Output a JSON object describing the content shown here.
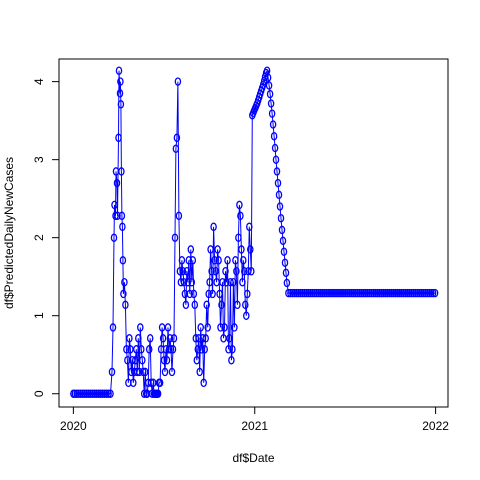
{
  "chart_data": {
    "type": "scatter",
    "style": "b",
    "xlabel": "df$Date",
    "ylabel": "df$PredictedDailyNewCases",
    "x_axis_kind": "date",
    "xlim": [
      "2019-12-03",
      "2022-01-26"
    ],
    "ylim": [
      -0.17,
      4.29
    ],
    "x_ticks": [
      {
        "label": "2020",
        "value": "2020-01-01"
      },
      {
        "label": "2021",
        "value": "2021-01-01"
      },
      {
        "label": "2022",
        "value": "2022-01-01"
      }
    ],
    "y_ticks": [
      0,
      1,
      2,
      3,
      4
    ],
    "grid": false,
    "legend": "none",
    "colors": {
      "series": "#0000ff",
      "axes": "#000000"
    },
    "series": [
      {
        "x": [
          "2020-01-01",
          "2020-01-04",
          "2020-01-08",
          "2020-01-12",
          "2020-01-16",
          "2020-01-20",
          "2020-01-24",
          "2020-01-28",
          "2020-02-01",
          "2020-02-05",
          "2020-02-09",
          "2020-02-13",
          "2020-02-17",
          "2020-02-21",
          "2020-02-25",
          "2020-02-29",
          "2020-03-04",
          "2020-03-08",
          "2020-03-12",
          "2020-03-16",
          "2020-03-19",
          "2020-03-21",
          "2020-03-23",
          "2020-03-24",
          "2020-03-26",
          "2020-03-27",
          "2020-03-29",
          "2020-03-30",
          "2020-04-01",
          "2020-04-02",
          "2020-04-04",
          "2020-04-05",
          "2020-04-06",
          "2020-04-07",
          "2020-04-08",
          "2020-04-09",
          "2020-04-10",
          "2020-04-11",
          "2020-04-13",
          "2020-04-15",
          "2020-04-17",
          "2020-04-19",
          "2020-04-21",
          "2020-04-23",
          "2020-04-25",
          "2020-04-27",
          "2020-04-29",
          "2020-05-01",
          "2020-05-03",
          "2020-05-05",
          "2020-05-07",
          "2020-05-09",
          "2020-05-11",
          "2020-05-13",
          "2020-05-15",
          "2020-05-17",
          "2020-05-19",
          "2020-05-21",
          "2020-05-23",
          "2020-05-25",
          "2020-05-27",
          "2020-05-29",
          "2020-05-31",
          "2020-06-02",
          "2020-06-04",
          "2020-06-06",
          "2020-06-08",
          "2020-06-10",
          "2020-06-12",
          "2020-06-14",
          "2020-06-16",
          "2020-06-18",
          "2020-06-20",
          "2020-06-22",
          "2020-06-24",
          "2020-06-26",
          "2020-06-28",
          "2020-06-30",
          "2020-07-02",
          "2020-07-04",
          "2020-07-06",
          "2020-07-08",
          "2020-07-10",
          "2020-07-12",
          "2020-07-14",
          "2020-07-16",
          "2020-07-18",
          "2020-07-20",
          "2020-07-22",
          "2020-07-24",
          "2020-07-26",
          "2020-07-28",
          "2020-07-30",
          "2020-08-01",
          "2020-08-03",
          "2020-08-05",
          "2020-08-07",
          "2020-08-09",
          "2020-08-11",
          "2020-08-13",
          "2020-08-15",
          "2020-08-17",
          "2020-08-19",
          "2020-08-21",
          "2020-08-23",
          "2020-08-25",
          "2020-08-27",
          "2020-08-29",
          "2020-08-31",
          "2020-09-02",
          "2020-09-04",
          "2020-09-06",
          "2020-09-08",
          "2020-09-10",
          "2020-09-12",
          "2020-09-14",
          "2020-09-16",
          "2020-09-18",
          "2020-09-20",
          "2020-09-22",
          "2020-09-24",
          "2020-09-26",
          "2020-09-28",
          "2020-09-30",
          "2020-10-02",
          "2020-10-04",
          "2020-10-06",
          "2020-10-08",
          "2020-10-10",
          "2020-10-12",
          "2020-10-14",
          "2020-10-16",
          "2020-10-18",
          "2020-10-20",
          "2020-10-22",
          "2020-10-24",
          "2020-10-26",
          "2020-10-28",
          "2020-10-30",
          "2020-11-01",
          "2020-11-03",
          "2020-11-05",
          "2020-11-07",
          "2020-11-09",
          "2020-11-11",
          "2020-11-13",
          "2020-11-15",
          "2020-11-17",
          "2020-11-19",
          "2020-11-21",
          "2020-11-23",
          "2020-11-25",
          "2020-11-27",
          "2020-11-29",
          "2020-12-01",
          "2020-12-03",
          "2020-12-05",
          "2020-12-07",
          "2020-12-09",
          "2020-12-11",
          "2020-12-13",
          "2020-12-15",
          "2020-12-17",
          "2020-12-19",
          "2020-12-21",
          "2020-12-23",
          "2020-12-25",
          "2020-12-27",
          "2020-12-29",
          "2020-12-31",
          "2021-01-02",
          "2021-01-04",
          "2021-01-06",
          "2021-01-08",
          "2021-01-10",
          "2021-01-12",
          "2021-01-14",
          "2021-01-16",
          "2021-01-18",
          "2021-01-20",
          "2021-01-22",
          "2021-01-24",
          "2021-01-26",
          "2021-01-28",
          "2021-01-30",
          "2021-02-01",
          "2021-02-03",
          "2021-02-05",
          "2021-02-07",
          "2021-02-09",
          "2021-02-11",
          "2021-02-13",
          "2021-02-15",
          "2021-02-17",
          "2021-02-19",
          "2021-02-21",
          "2021-02-23",
          "2021-02-25",
          "2021-02-27",
          "2021-03-01",
          "2021-03-03",
          "2021-03-05",
          "2021-03-07",
          "2021-03-10",
          "2021-03-14",
          "2021-03-18",
          "2021-03-22",
          "2021-03-26",
          "2021-03-30",
          "2021-04-03",
          "2021-04-07",
          "2021-04-11",
          "2021-04-15",
          "2021-04-19",
          "2021-04-23",
          "2021-04-27",
          "2021-05-01",
          "2021-05-05",
          "2021-05-09",
          "2021-05-13",
          "2021-05-17",
          "2021-05-21",
          "2021-05-25",
          "2021-05-29",
          "2021-06-02",
          "2021-06-06",
          "2021-06-10",
          "2021-06-14",
          "2021-06-18",
          "2021-06-22",
          "2021-06-26",
          "2021-06-30",
          "2021-07-04",
          "2021-07-08",
          "2021-07-12",
          "2021-07-16",
          "2021-07-20",
          "2021-07-24",
          "2021-07-28",
          "2021-08-01",
          "2021-08-05",
          "2021-08-09",
          "2021-08-13",
          "2021-08-17",
          "2021-08-21",
          "2021-08-25",
          "2021-08-29",
          "2021-09-02",
          "2021-09-06",
          "2021-09-10",
          "2021-09-14",
          "2021-09-18",
          "2021-09-22",
          "2021-09-26",
          "2021-09-30",
          "2021-10-04",
          "2021-10-08",
          "2021-10-12",
          "2021-10-16",
          "2021-10-20",
          "2021-10-24",
          "2021-10-28",
          "2021-11-01",
          "2021-11-05",
          "2021-11-09",
          "2021-11-13",
          "2021-11-17",
          "2021-11-21",
          "2021-11-25",
          "2021-11-29",
          "2021-12-03",
          "2021-12-07",
          "2021-12-11",
          "2021-12-15",
          "2021-12-19",
          "2021-12-23",
          "2021-12-27",
          "2021-12-31"
        ],
        "y": [
          0,
          0,
          0,
          0,
          0,
          0,
          0,
          0,
          0,
          0,
          0,
          0,
          0,
          0,
          0,
          0,
          0,
          0,
          0,
          0,
          0.28,
          0.85,
          2.0,
          2.42,
          2.28,
          2.85,
          2.7,
          2.28,
          3.28,
          4.14,
          3.85,
          4.0,
          3.71,
          2.85,
          2.28,
          2.14,
          1.71,
          1.28,
          1.43,
          1.14,
          0.57,
          0.43,
          0.14,
          0.71,
          0.57,
          0.28,
          0.43,
          0.14,
          0.28,
          0.43,
          0.57,
          0.28,
          0.71,
          0.28,
          0.85,
          0.57,
          0.43,
          0.28,
          0,
          0.28,
          0,
          0,
          0.14,
          0.57,
          0.71,
          0.14,
          0,
          0.14,
          0,
          0,
          0,
          0,
          0,
          0.14,
          0.14,
          0.57,
          0.85,
          0.71,
          0.43,
          0.28,
          0.57,
          0.43,
          0.85,
          0.57,
          0.71,
          0.57,
          0.28,
          0.57,
          0.71,
          2.0,
          3.14,
          3.28,
          4.0,
          2.28,
          1.57,
          1.43,
          1.71,
          1.57,
          1.43,
          1.28,
          1.14,
          1.57,
          1.43,
          1.71,
          1.28,
          1.85,
          1.43,
          1.71,
          1.28,
          1.14,
          0.71,
          0.43,
          0.57,
          0.71,
          0.28,
          0.85,
          0.57,
          0.71,
          0.14,
          0.57,
          0.71,
          1.14,
          0.85,
          1.28,
          1.43,
          1.85,
          1.57,
          1.28,
          2.14,
          1.71,
          1.57,
          1.43,
          1.85,
          1.71,
          1.28,
          0.85,
          1.14,
          1.43,
          0.71,
          0.85,
          1.57,
          1.43,
          1.71,
          0.57,
          0.71,
          1.43,
          0.43,
          0.57,
          1.43,
          0.85,
          1.71,
          1.57,
          1.14,
          2.0,
          2.42,
          2.28,
          1.85,
          1.43,
          1.71,
          1.57,
          1.14,
          1.0,
          1.28,
          1.57,
          2.14,
          1.85,
          1.57,
          3.57,
          3.6,
          3.63,
          3.66,
          3.69,
          3.72,
          3.76,
          3.8,
          3.84,
          3.88,
          3.92,
          3.96,
          4.01,
          4.06,
          4.11,
          4.14,
          4.05,
          3.95,
          3.84,
          3.72,
          3.59,
          3.45,
          3.3,
          3.15,
          3.0,
          2.85,
          2.7,
          2.55,
          2.4,
          2.25,
          2.1,
          1.96,
          1.82,
          1.68,
          1.55,
          1.42,
          1.29,
          1.29,
          1.29,
          1.29,
          1.29,
          1.29,
          1.29,
          1.29,
          1.29,
          1.29,
          1.29,
          1.29,
          1.29,
          1.29,
          1.29,
          1.29,
          1.29,
          1.29,
          1.29,
          1.29,
          1.29,
          1.29,
          1.29,
          1.29,
          1.29,
          1.29,
          1.29,
          1.29,
          1.29,
          1.29,
          1.29,
          1.29,
          1.29,
          1.29,
          1.29,
          1.29,
          1.29,
          1.29,
          1.29,
          1.29,
          1.29,
          1.29,
          1.29,
          1.29,
          1.29,
          1.29,
          1.29,
          1.29,
          1.29,
          1.29,
          1.29,
          1.29,
          1.29,
          1.29,
          1.29,
          1.29,
          1.29,
          1.29,
          1.29,
          1.29,
          1.29,
          1.29,
          1.29,
          1.29,
          1.29,
          1.29,
          1.29,
          1.29,
          1.29,
          1.29,
          1.29,
          1.29,
          1.29,
          1.29,
          1.29
        ]
      }
    ]
  }
}
